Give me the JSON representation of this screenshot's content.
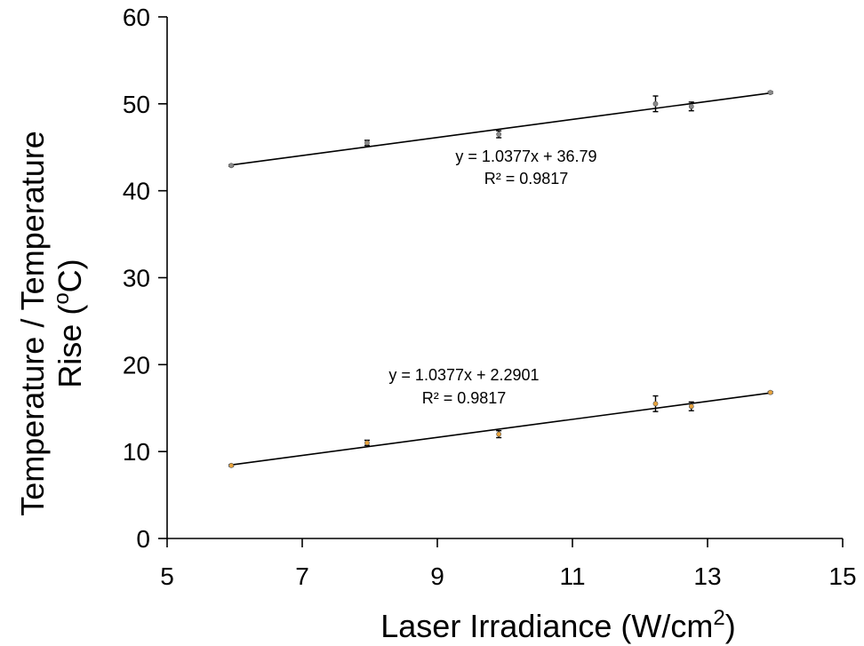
{
  "chart_data": {
    "type": "scatter",
    "title": "",
    "xlabel": "Laser Irradiance (W/cm²)",
    "xlabel_main": "Laser Irradiance (W/cm",
    "xlabel_sup": "2",
    "xlabel_end": ")",
    "ylabel_line1": "Temperature / Temperature",
    "ylabel_line2_main": "Rise (",
    "ylabel_line2_sup": "o",
    "ylabel_line2_end": "C)",
    "xlim": [
      5,
      15
    ],
    "ylim": [
      0,
      60
    ],
    "x_ticks": [
      5,
      7,
      9,
      11,
      13,
      15
    ],
    "y_ticks": [
      0,
      10,
      20,
      30,
      40,
      50,
      60
    ],
    "grid": false,
    "legend": "none",
    "series": [
      {
        "color": "#8a8a8a",
        "x": [
          5.95,
          7.96,
          9.91,
          12.23,
          12.76,
          13.93
        ],
        "y": [
          42.9,
          45.5,
          46.5,
          50.0,
          49.7,
          51.3
        ],
        "yerr": [
          0.1,
          0.3,
          0.4,
          0.9,
          0.5,
          0.1
        ],
        "trendline": {
          "slope": 1.0377,
          "intercept": 36.79
        },
        "equation": "y = 1.0377x + 36.79",
        "r2": "R² = 0.9817"
      },
      {
        "color": "#e8a33c",
        "x": [
          5.95,
          7.96,
          9.91,
          12.23,
          12.76,
          13.93
        ],
        "y": [
          8.4,
          11.0,
          12.0,
          15.5,
          15.2,
          16.8
        ],
        "yerr": [
          0.1,
          0.3,
          0.4,
          0.9,
          0.5,
          0.1
        ],
        "trendline": {
          "slope": 1.0377,
          "intercept": 2.2901
        },
        "equation": "y = 1.0377x + 2.2901",
        "r2": "R² = 0.9817"
      }
    ]
  }
}
